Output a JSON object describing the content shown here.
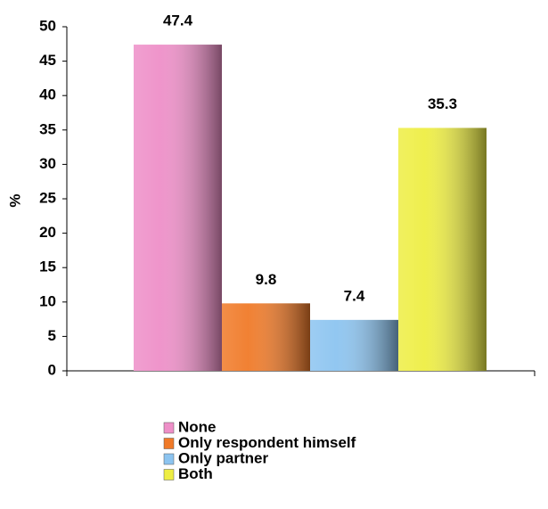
{
  "chart_data": {
    "type": "bar",
    "ylabel": "%",
    "categories": [
      null
    ],
    "series": [
      {
        "name": "None",
        "color": "#ee8fc8",
        "values": [
          47.4
        ]
      },
      {
        "name": "Only respondent himself",
        "color": "#f07a28",
        "values": [
          9.8
        ]
      },
      {
        "name": "Only partner",
        "color": "#8cc4f0",
        "values": [
          7.4
        ]
      },
      {
        "name": "Both",
        "color": "#eeee44",
        "values": [
          35.3
        ]
      }
    ],
    "ylim": [
      0,
      50
    ],
    "yticks": [
      0,
      5,
      10,
      15,
      20,
      25,
      30,
      35,
      40,
      45,
      50
    ],
    "legend": "bottom"
  }
}
